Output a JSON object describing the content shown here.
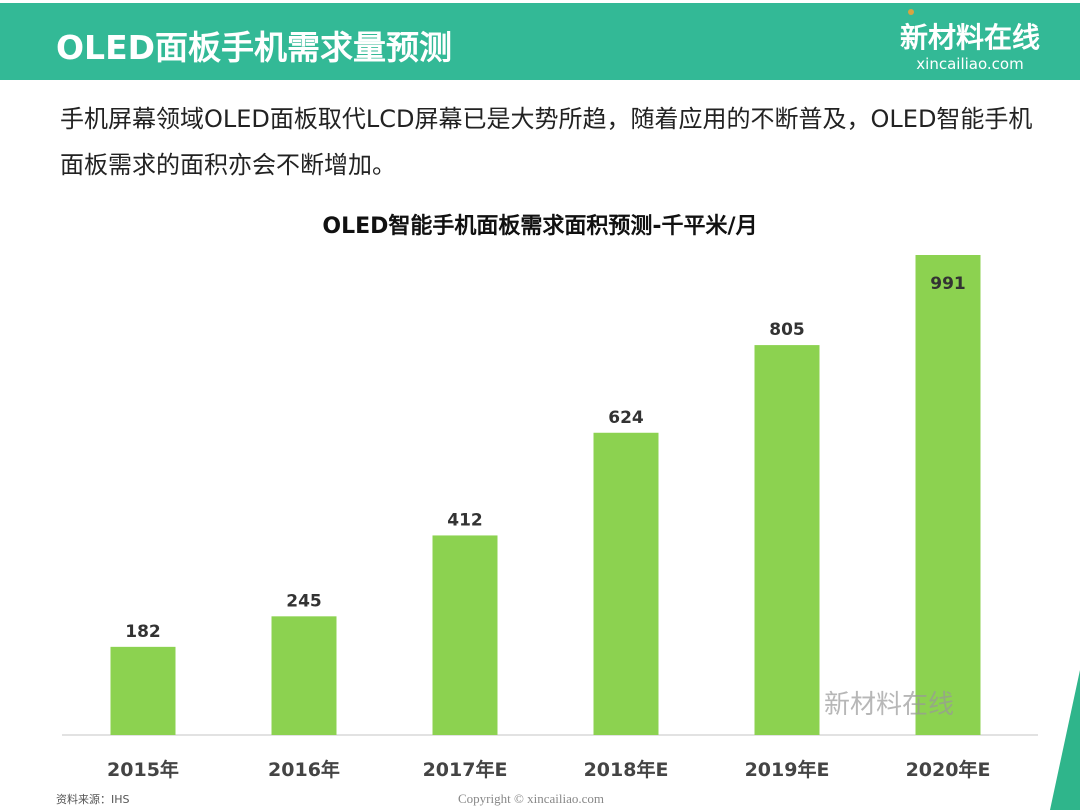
{
  "header": {
    "title": "OLED面板手机需求量预测",
    "logo_cn": "新材料在线",
    "logo_en": "xincailiao.com"
  },
  "description": "手机屏幕领域OLED面板取代LCD屏幕已是大势所趋，随着应用的不断普及，OLED智能手机面板需求的面积亦会不断增加。",
  "footer": {
    "source": "资料来源：IHS",
    "copyright": "Copyright © xincailiao.com",
    "watermark": "新材料在线"
  },
  "colors": {
    "header": "#33b996",
    "bar": "#8cd250"
  },
  "chart_data": {
    "type": "bar",
    "title": "OLED智能手机面板需求面积预测-千平米/月",
    "categories": [
      "2015年",
      "2016年",
      "2017年E",
      "2018年E",
      "2019年E",
      "2020年E"
    ],
    "values": [
      182,
      245,
      412,
      624,
      805,
      991
    ],
    "ylim": [
      0,
      991
    ],
    "grid": false
  }
}
